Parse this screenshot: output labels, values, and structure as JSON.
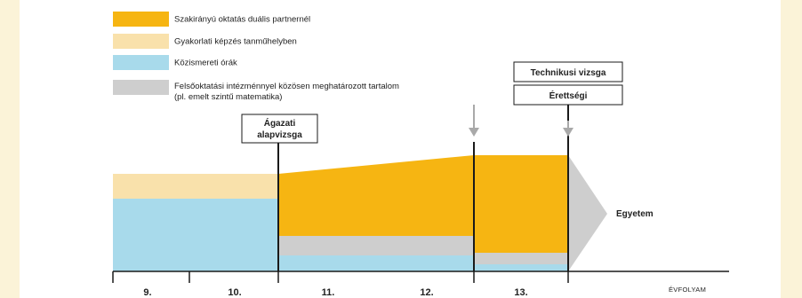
{
  "colors": {
    "page_bg": "#fbf3d8",
    "panel_bg": "#ffffff",
    "dual": "#f6b512",
    "workshop": "#f9e1ab",
    "general": "#a8daeb",
    "higher_ed": "#cecece",
    "line": "#1a1a1a",
    "arrow": "#a9a9a9"
  },
  "legend": [
    {
      "key": "dual",
      "label": "Szakirányú oktatás duális partnernél"
    },
    {
      "key": "workshop",
      "label": "Gyakorlati képzés tanműhelyben"
    },
    {
      "key": "general",
      "label": "Közismereti órák"
    },
    {
      "key": "higher_ed",
      "label": "Felsőoktatási intézménnyel közösen meghatározott tartalom",
      "label2": "(pl. emelt szintű matematika)"
    }
  ],
  "exams": {
    "sector": [
      "Ágazati",
      "alapvizsga"
    ],
    "technical": "Technikusi vizsga",
    "matura": "Érettségi"
  },
  "destination": "Egyetem",
  "axis": {
    "word": "ÉVFOLYAM",
    "grades": [
      "9.",
      "10.",
      "11.",
      "12.",
      "13."
    ]
  }
}
